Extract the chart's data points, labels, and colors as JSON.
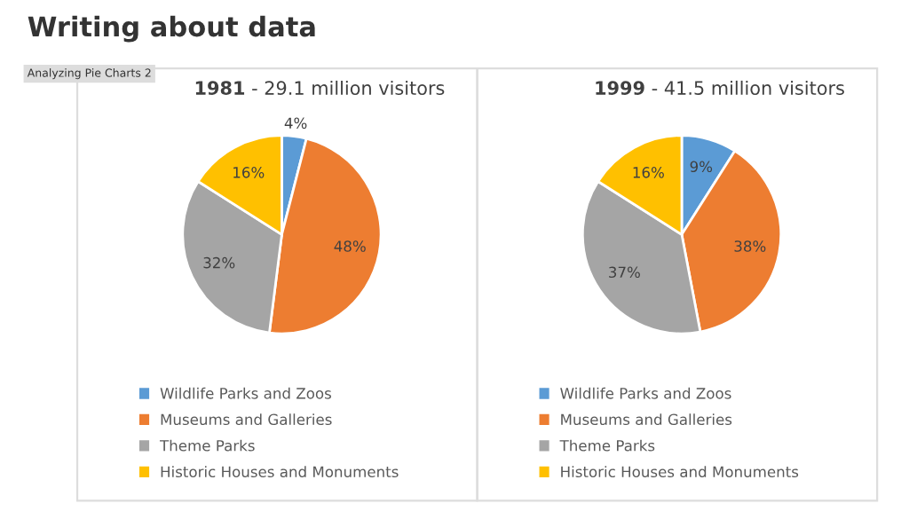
{
  "chart_data": [
    {
      "type": "pie",
      "title": "1981 - 29.1 million visitors",
      "annotations": [
        "Writing about data",
        "Analyzing Pie Charts 2"
      ],
      "categories": [
        "Wildlife Parks and Zoos",
        "Museums and Galleries",
        "Theme Parks",
        "Historic Houses and Monuments"
      ],
      "values": [
        4,
        48,
        32,
        16
      ],
      "value_labels": [
        "4%",
        "48%",
        "32%",
        "16%"
      ],
      "colors": [
        "#5b9bd5",
        "#ed7d31",
        "#a5a5a5",
        "#ffc000"
      ],
      "legend": "bottom"
    },
    {
      "type": "pie",
      "title": "1999 - 41.5 million visitors",
      "categories": [
        "Wildlife Parks and Zoos",
        "Museums and Galleries",
        "Theme Parks",
        "Historic Houses and Monuments"
      ],
      "values": [
        9,
        38,
        37,
        16
      ],
      "value_labels": [
        "9%",
        "38%",
        "37%",
        "16%"
      ],
      "colors": [
        "#5b9bd5",
        "#ed7d31",
        "#a5a5a5",
        "#ffc000"
      ],
      "legend": "bottom"
    }
  ]
}
